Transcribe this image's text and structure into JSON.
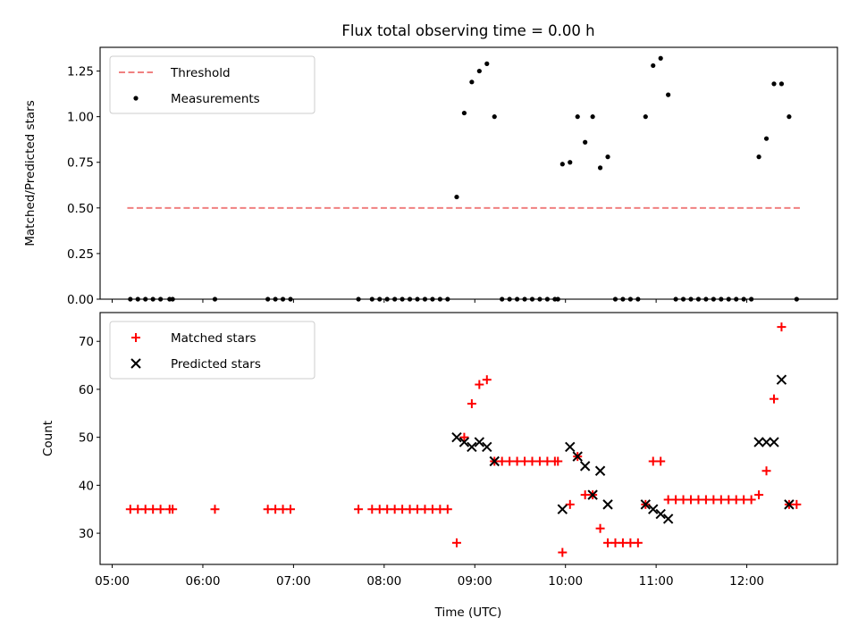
{
  "chart_data": [
    {
      "type": "scatter",
      "title": "Flux total observing time = 0.00 h",
      "xlabel": "",
      "ylabel": "Matched/Predicted stars",
      "xlim": [
        "04:52",
        "13:00"
      ],
      "ylim": [
        0,
        1.38
      ],
      "yticks": [
        0.0,
        0.25,
        0.5,
        0.75,
        1.0,
        1.25
      ],
      "ytick_labels": [
        "0.00",
        "0.25",
        "0.50",
        "0.75",
        "1.00",
        "1.25"
      ],
      "legend_position": "top-left",
      "series": [
        {
          "name": "Threshold",
          "kind": "dashed-line",
          "color": "#f08080",
          "points": [
            [
              "05:10",
              0.5
            ],
            [
              "12:37",
              0.5
            ]
          ]
        },
        {
          "name": "Measurements",
          "kind": "dot",
          "color": "#000000",
          "points": [
            [
              "05:12",
              0
            ],
            [
              "05:17",
              0
            ],
            [
              "05:22",
              0
            ],
            [
              "05:27",
              0
            ],
            [
              "05:32",
              0
            ],
            [
              "05:38",
              0
            ],
            [
              "05:40",
              0
            ],
            [
              "06:08",
              0
            ],
            [
              "06:43",
              0
            ],
            [
              "06:48",
              0
            ],
            [
              "06:53",
              0
            ],
            [
              "06:58",
              0
            ],
            [
              "07:43",
              0
            ],
            [
              "07:52",
              0
            ],
            [
              "07:57",
              0
            ],
            [
              "08:02",
              0
            ],
            [
              "08:07",
              0
            ],
            [
              "08:12",
              0
            ],
            [
              "08:17",
              0
            ],
            [
              "08:22",
              0
            ],
            [
              "08:27",
              0
            ],
            [
              "08:32",
              0
            ],
            [
              "08:37",
              0
            ],
            [
              "08:42",
              0
            ],
            [
              "08:48",
              0.56
            ],
            [
              "08:53",
              1.02
            ],
            [
              "08:58",
              1.19
            ],
            [
              "09:03",
              1.25
            ],
            [
              "09:08",
              1.29
            ],
            [
              "09:13",
              1.0
            ],
            [
              "09:18",
              0
            ],
            [
              "09:23",
              0
            ],
            [
              "09:28",
              0
            ],
            [
              "09:33",
              0
            ],
            [
              "09:38",
              0
            ],
            [
              "09:43",
              0
            ],
            [
              "09:48",
              0
            ],
            [
              "09:53",
              0
            ],
            [
              "09:55",
              0
            ],
            [
              "09:58",
              0.74
            ],
            [
              "10:03",
              0.75
            ],
            [
              "10:08",
              1.0
            ],
            [
              "10:13",
              0.86
            ],
            [
              "10:18",
              1.0
            ],
            [
              "10:23",
              0.72
            ],
            [
              "10:28",
              0.78
            ],
            [
              "10:33",
              0
            ],
            [
              "10:38",
              0
            ],
            [
              "10:43",
              0
            ],
            [
              "10:48",
              0
            ],
            [
              "10:53",
              1.0
            ],
            [
              "10:58",
              1.28
            ],
            [
              "11:03",
              1.32
            ],
            [
              "11:08",
              1.12
            ],
            [
              "11:13",
              0
            ],
            [
              "11:18",
              0
            ],
            [
              "11:23",
              0
            ],
            [
              "11:28",
              0
            ],
            [
              "11:33",
              0
            ],
            [
              "11:38",
              0
            ],
            [
              "11:43",
              0
            ],
            [
              "11:48",
              0
            ],
            [
              "11:53",
              0
            ],
            [
              "11:58",
              0
            ],
            [
              "12:03",
              0
            ],
            [
              "12:08",
              0.78
            ],
            [
              "12:13",
              0.88
            ],
            [
              "12:18",
              1.18
            ],
            [
              "12:23",
              1.18
            ],
            [
              "12:28",
              1.0
            ],
            [
              "12:33",
              0
            ]
          ]
        }
      ]
    },
    {
      "type": "scatter",
      "title": "",
      "xlabel": "Time (UTC)",
      "ylabel": "Count",
      "xlim": [
        "04:52",
        "13:00"
      ],
      "ylim": [
        23.5,
        76
      ],
      "yticks": [
        30,
        40,
        50,
        60,
        70
      ],
      "ytick_labels": [
        "30",
        "40",
        "50",
        "60",
        "70"
      ],
      "xticks": [
        "05:00",
        "06:00",
        "07:00",
        "08:00",
        "09:00",
        "10:00",
        "11:00",
        "12:00"
      ],
      "xtick_labels": [
        "05:00",
        "06:00",
        "07:00",
        "08:00",
        "09:00",
        "10:00",
        "11:00",
        "12:00"
      ],
      "legend_position": "top-left",
      "series": [
        {
          "name": "Matched stars",
          "kind": "plus",
          "color": "#ff0000",
          "points": [
            [
              "05:12",
              35
            ],
            [
              "05:17",
              35
            ],
            [
              "05:22",
              35
            ],
            [
              "05:27",
              35
            ],
            [
              "05:32",
              35
            ],
            [
              "05:38",
              35
            ],
            [
              "05:40",
              35
            ],
            [
              "06:08",
              35
            ],
            [
              "06:43",
              35
            ],
            [
              "06:48",
              35
            ],
            [
              "06:53",
              35
            ],
            [
              "06:58",
              35
            ],
            [
              "07:43",
              35
            ],
            [
              "07:52",
              35
            ],
            [
              "07:57",
              35
            ],
            [
              "08:02",
              35
            ],
            [
              "08:07",
              35
            ],
            [
              "08:12",
              35
            ],
            [
              "08:17",
              35
            ],
            [
              "08:22",
              35
            ],
            [
              "08:27",
              35
            ],
            [
              "08:32",
              35
            ],
            [
              "08:37",
              35
            ],
            [
              "08:42",
              35
            ],
            [
              "08:48",
              28
            ],
            [
              "08:53",
              50
            ],
            [
              "08:58",
              57
            ],
            [
              "09:03",
              61
            ],
            [
              "09:08",
              62
            ],
            [
              "09:13",
              45
            ],
            [
              "09:18",
              45
            ],
            [
              "09:23",
              45
            ],
            [
              "09:28",
              45
            ],
            [
              "09:33",
              45
            ],
            [
              "09:38",
              45
            ],
            [
              "09:43",
              45
            ],
            [
              "09:48",
              45
            ],
            [
              "09:53",
              45
            ],
            [
              "09:55",
              45
            ],
            [
              "09:58",
              26
            ],
            [
              "10:03",
              36
            ],
            [
              "10:08",
              46
            ],
            [
              "10:13",
              38
            ],
            [
              "10:18",
              38
            ],
            [
              "10:23",
              31
            ],
            [
              "10:28",
              28
            ],
            [
              "10:33",
              28
            ],
            [
              "10:38",
              28
            ],
            [
              "10:43",
              28
            ],
            [
              "10:48",
              28
            ],
            [
              "10:53",
              36
            ],
            [
              "10:58",
              45
            ],
            [
              "11:03",
              45
            ],
            [
              "11:08",
              37
            ],
            [
              "11:13",
              37
            ],
            [
              "11:18",
              37
            ],
            [
              "11:23",
              37
            ],
            [
              "11:28",
              37
            ],
            [
              "11:33",
              37
            ],
            [
              "11:38",
              37
            ],
            [
              "11:43",
              37
            ],
            [
              "11:48",
              37
            ],
            [
              "11:53",
              37
            ],
            [
              "11:58",
              37
            ],
            [
              "12:03",
              37
            ],
            [
              "12:08",
              38
            ],
            [
              "12:13",
              43
            ],
            [
              "12:18",
              58
            ],
            [
              "12:23",
              73
            ],
            [
              "12:28",
              36
            ],
            [
              "12:33",
              36
            ]
          ]
        },
        {
          "name": "Predicted stars",
          "kind": "x",
          "color": "#000000",
          "points": [
            [
              "08:48",
              50
            ],
            [
              "08:53",
              49
            ],
            [
              "08:58",
              48
            ],
            [
              "09:03",
              49
            ],
            [
              "09:08",
              48
            ],
            [
              "09:13",
              45
            ],
            [
              "09:58",
              35
            ],
            [
              "10:03",
              48
            ],
            [
              "10:08",
              46
            ],
            [
              "10:13",
              44
            ],
            [
              "10:18",
              38
            ],
            [
              "10:23",
              43
            ],
            [
              "10:28",
              36
            ],
            [
              "10:53",
              36
            ],
            [
              "10:58",
              35
            ],
            [
              "11:03",
              34
            ],
            [
              "11:08",
              33
            ],
            [
              "12:08",
              49
            ],
            [
              "12:13",
              49
            ],
            [
              "12:18",
              49
            ],
            [
              "12:23",
              62
            ],
            [
              "12:28",
              36
            ]
          ]
        }
      ]
    }
  ]
}
